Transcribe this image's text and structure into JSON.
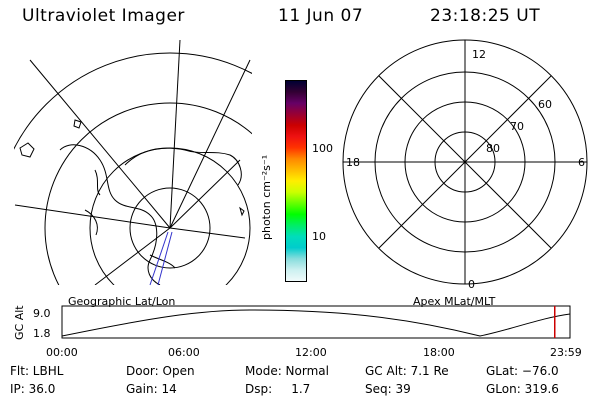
{
  "header": {
    "title": "Ultraviolet Imager",
    "date": "11 Jun 07",
    "time": "23:18:25 UT"
  },
  "left_map": {
    "label": "Geographic Lat/Lon",
    "earth_color": "#000000",
    "grid_color": "#000000",
    "track_color": "#3333cc"
  },
  "colorbar": {
    "unit_label": "photon cm⁻²s⁻¹",
    "tick_100": "100",
    "tick_10": "10",
    "colors": [
      "#000033",
      "#330033",
      "#660066",
      "#990033",
      "#cc0000",
      "#ee1111",
      "#ff3300",
      "#ff8800",
      "#ffbb00",
      "#ffee00",
      "#ccff00",
      "#66ff00",
      "#00ff00",
      "#00ee66",
      "#00ddbb",
      "#00cccc",
      "#88dddd",
      "#ccf0f0",
      "#f0fafa"
    ]
  },
  "polar_plot": {
    "label": "Apex MLat/MLT",
    "mlt_top": "12",
    "mlt_left": "18",
    "mlt_right": "6",
    "mlt_bottom": "0",
    "lat_labels": [
      "60",
      "70",
      "80"
    ]
  },
  "timeline": {
    "ylabel": "GC Alt",
    "y_high": "9.0",
    "y_low": "1.8",
    "ticks": [
      "00:00",
      "06:00",
      "12:00",
      "18:00",
      "23:59"
    ],
    "current_time_fraction": 0.97,
    "marker_color": "#cc0000"
  },
  "status": {
    "flt": "Flt: LBHL",
    "ip": "IP: 36.0",
    "door": "Door: Open",
    "gain": "Gain: 14",
    "mode": "Mode: Normal",
    "dsp": "Dsp:     1.7",
    "gc_alt": "GC Alt: 7.1 Re",
    "seq": "Seq: 39",
    "glat": "GLat: −76.0",
    "glon": "GLon: 319.6"
  }
}
